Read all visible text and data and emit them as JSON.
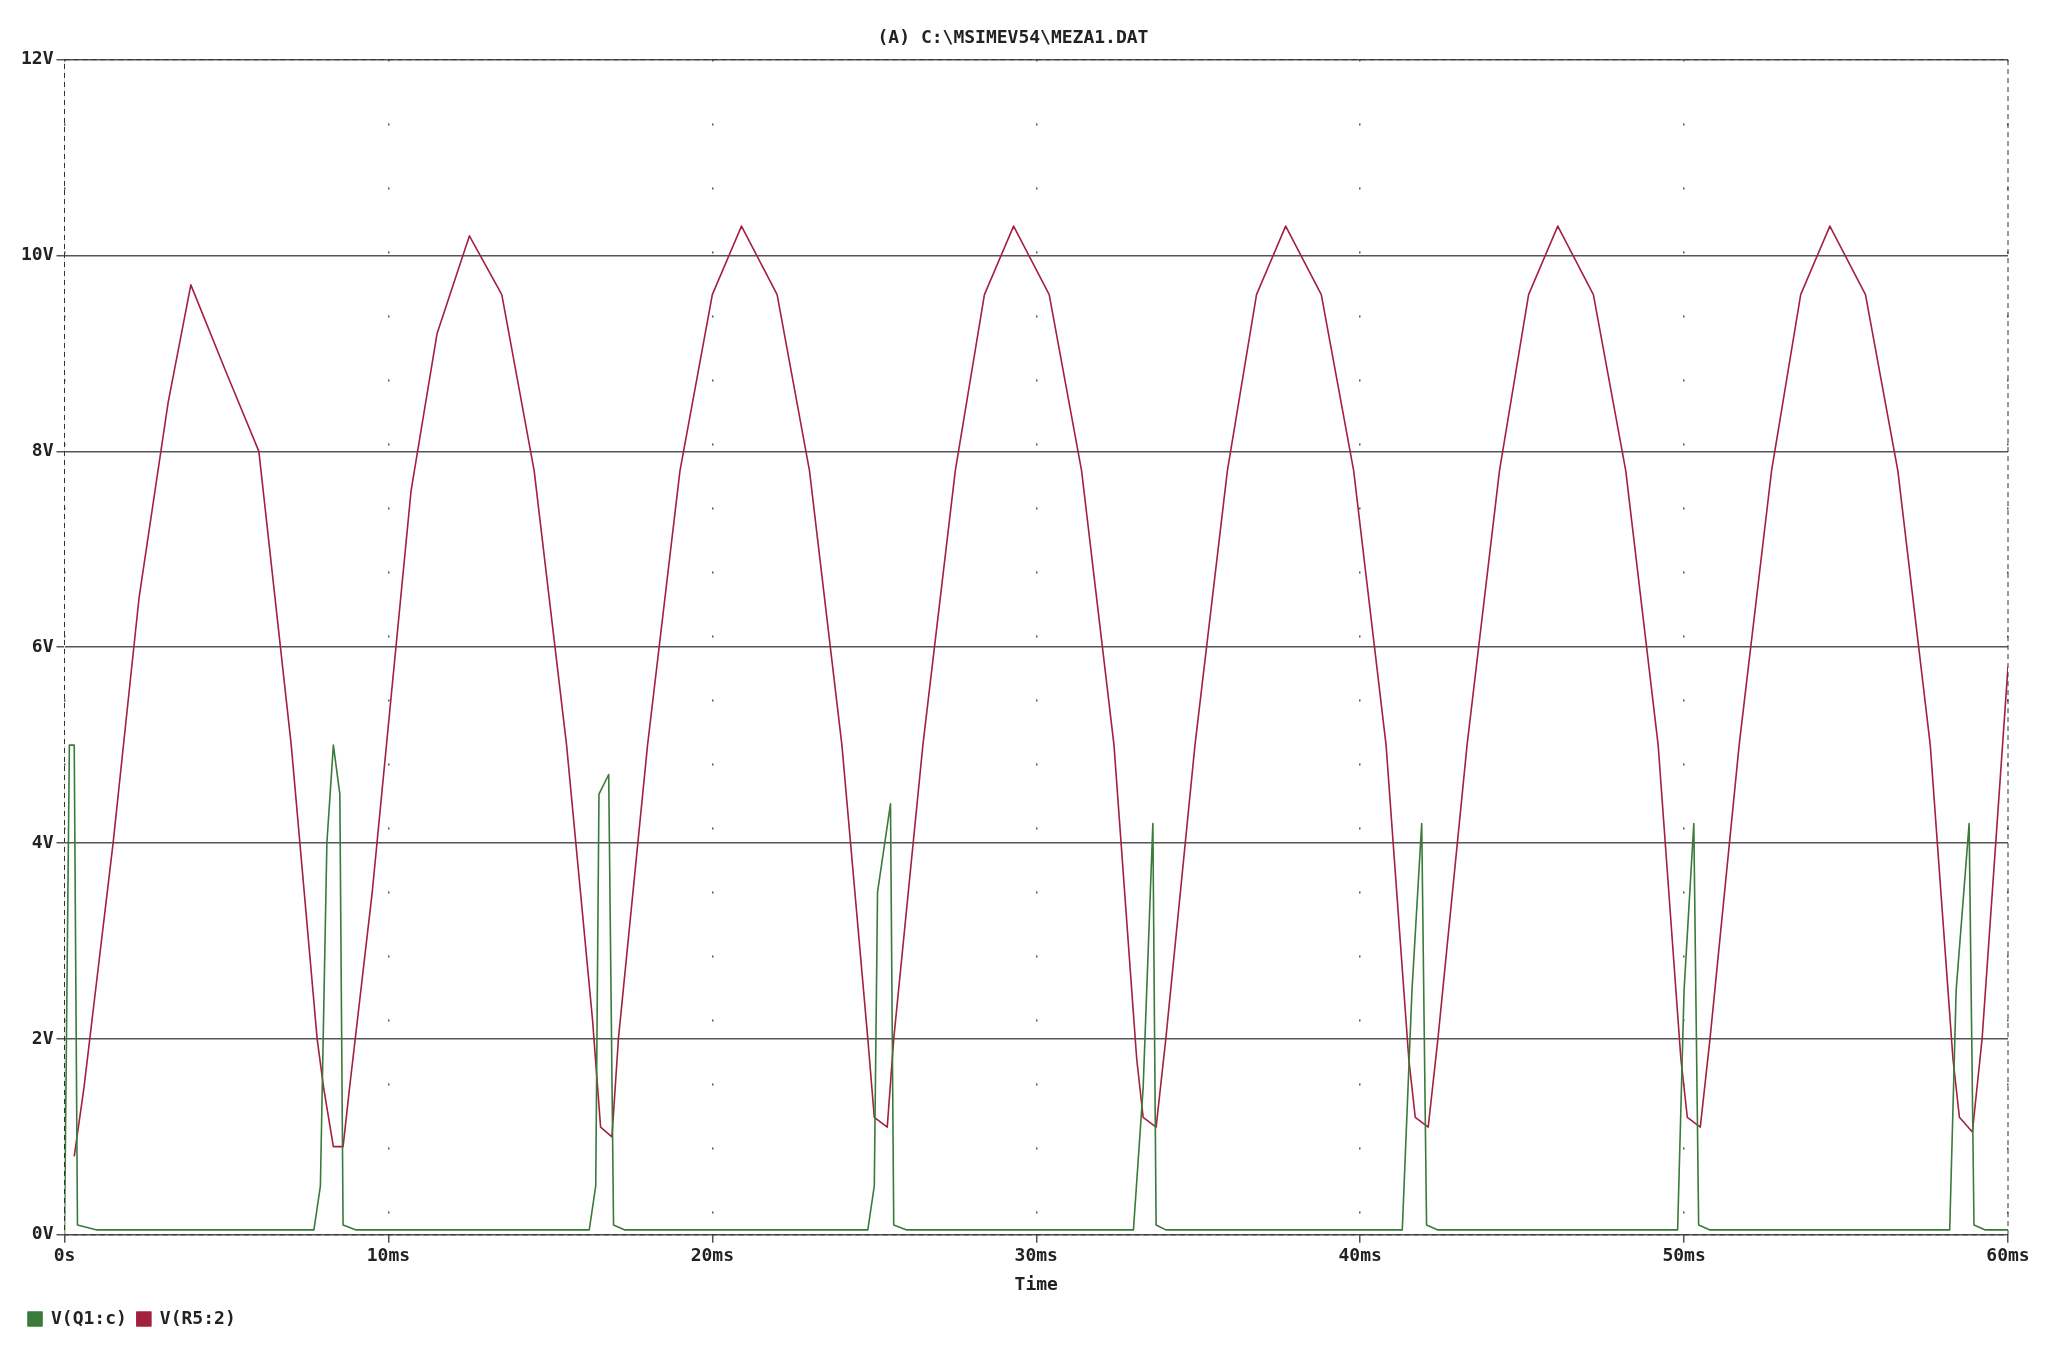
{
  "chart_data": {
    "type": "line",
    "title": "(A) C:\\MSIMEV54\\MEZA1.DAT",
    "xlabel": "Time",
    "xlim": [
      0,
      60
    ],
    "xticks": [
      {
        "value": 0,
        "label": "0s"
      },
      {
        "value": 10,
        "label": "10ms"
      },
      {
        "value": 20,
        "label": "20ms"
      },
      {
        "value": 30,
        "label": "30ms"
      },
      {
        "value": 40,
        "label": "40ms"
      },
      {
        "value": 50,
        "label": "50ms"
      },
      {
        "value": 60,
        "label": "60ms"
      }
    ],
    "ylim": [
      0,
      12
    ],
    "yticks": [
      {
        "value": 0,
        "label": "0V"
      },
      {
        "value": 2,
        "label": "2V"
      },
      {
        "value": 4,
        "label": "4V"
      },
      {
        "value": 6,
        "label": "6V"
      },
      {
        "value": 8,
        "label": "8V"
      },
      {
        "value": 10,
        "label": "10V"
      },
      {
        "value": 12,
        "label": "12V"
      }
    ],
    "grid": true,
    "legend": "bottom left",
    "marker": "none",
    "line_style": "solid",
    "series": [
      {
        "name": "V(Q1:c)",
        "color": "#3a7a3a",
        "x": [
          0,
          0.15,
          0.3,
          0.4,
          1.0,
          7.7,
          7.9,
          8.1,
          8.3,
          8.5,
          8.6,
          9.0,
          16.2,
          16.4,
          16.5,
          16.8,
          16.95,
          17.3,
          24.8,
          25.0,
          25.1,
          25.5,
          25.6,
          26.0,
          33.0,
          33.3,
          33.6,
          33.7,
          34.0,
          41.3,
          41.6,
          41.9,
          42.05,
          42.4,
          49.8,
          50.0,
          50.3,
          50.45,
          50.8,
          58.2,
          58.4,
          58.8,
          58.95,
          59.3,
          60
        ],
        "values": [
          0,
          5.0,
          5.0,
          0.1,
          0.05,
          0.05,
          0.5,
          4.0,
          5.0,
          4.5,
          0.1,
          0.05,
          0.05,
          0.5,
          4.5,
          4.7,
          0.1,
          0.05,
          0.05,
          0.5,
          3.5,
          4.4,
          0.1,
          0.05,
          0.05,
          1.5,
          4.2,
          0.1,
          0.05,
          0.05,
          2.5,
          4.2,
          0.1,
          0.05,
          0.05,
          2.5,
          4.2,
          0.1,
          0.05,
          0.05,
          2.5,
          4.2,
          0.1,
          0.05,
          0.05
        ]
      },
      {
        "name": "V(R5:2)",
        "color": "#a3203f",
        "x": [
          0.3,
          0.6,
          1.5,
          2.3,
          3.2,
          3.9,
          5.0,
          6.0,
          7.0,
          7.8,
          8.0,
          8.3,
          8.6,
          8.8,
          9.5,
          10.7,
          11.5,
          12.5,
          13.5,
          14.5,
          15.5,
          16.3,
          16.55,
          16.9,
          17.1,
          18.0,
          19.0,
          20.0,
          20.9,
          22.0,
          23.0,
          24.0,
          24.8,
          25.0,
          25.4,
          25.6,
          26.5,
          27.5,
          28.4,
          29.3,
          30.4,
          31.4,
          32.4,
          33.1,
          33.3,
          33.7,
          34.0,
          34.9,
          35.9,
          36.8,
          37.7,
          38.8,
          39.8,
          40.8,
          41.5,
          41.7,
          42.1,
          42.4,
          43.3,
          44.3,
          45.2,
          46.1,
          47.2,
          48.2,
          49.2,
          49.9,
          50.1,
          50.5,
          50.8,
          51.7,
          52.7,
          53.6,
          54.5,
          55.6,
          56.6,
          57.6,
          58.3,
          58.5,
          58.9,
          59.2,
          60.0
        ],
        "values": [
          0.8,
          1.5,
          4.0,
          6.5,
          8.5,
          9.7,
          8.8,
          8.0,
          5.0,
          2.0,
          1.5,
          0.9,
          0.9,
          1.5,
          3.5,
          7.6,
          9.2,
          10.2,
          9.6,
          7.8,
          5.0,
          2.2,
          1.1,
          1.0,
          2.0,
          5.0,
          7.8,
          9.6,
          10.3,
          9.6,
          7.8,
          5.0,
          2.0,
          1.2,
          1.1,
          2.0,
          5.0,
          7.8,
          9.6,
          10.3,
          9.6,
          7.8,
          5.0,
          1.8,
          1.2,
          1.1,
          2.0,
          5.0,
          7.8,
          9.6,
          10.3,
          9.6,
          7.8,
          5.0,
          1.8,
          1.2,
          1.1,
          2.0,
          5.0,
          7.8,
          9.6,
          10.3,
          9.6,
          7.8,
          5.0,
          1.8,
          1.2,
          1.1,
          2.0,
          5.0,
          7.8,
          9.6,
          10.3,
          9.6,
          7.8,
          5.0,
          1.8,
          1.2,
          1.05,
          2.0,
          5.8
        ]
      }
    ]
  }
}
